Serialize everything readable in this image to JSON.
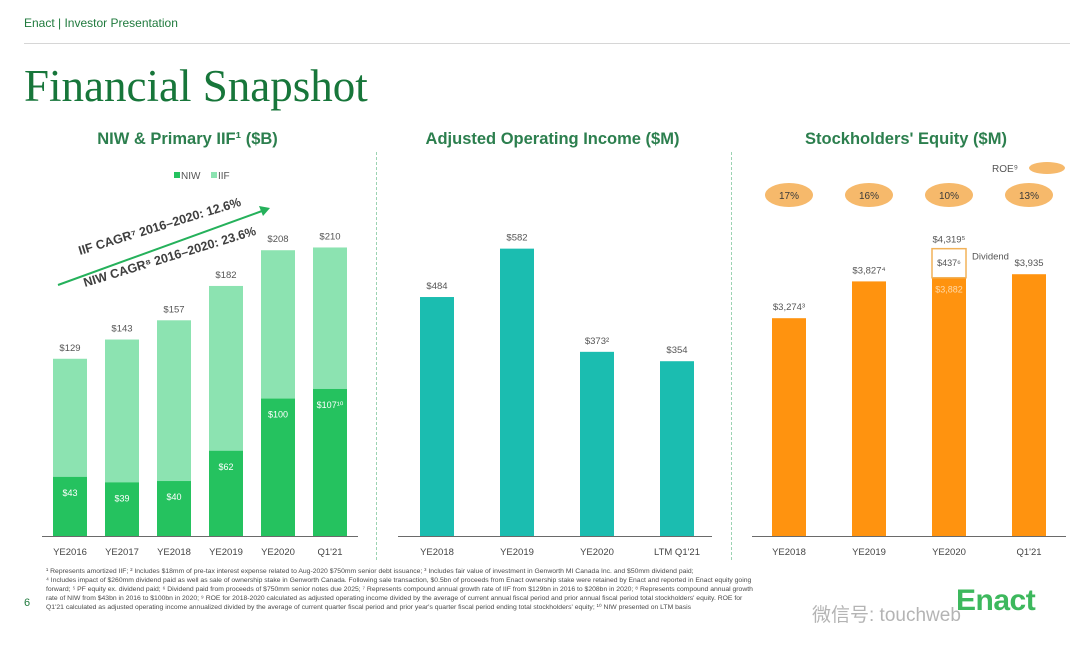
{
  "header": {
    "label": "Enact | Investor Presentation"
  },
  "page_title": "Financial Snapshot",
  "page_number": "6",
  "logo_text": "Enact",
  "watermark": "微信号: touchweb",
  "colors": {
    "niw": "#25c25f",
    "iif": "#8ce3b1",
    "teal": "#1bbdb0",
    "orange": "#ff930f",
    "roe_badge": "#f6b96b",
    "green_text": "#17763a",
    "arrow": "#25b15b"
  },
  "footnotes": [
    "¹ Represents amortized IIF; ² Includes $18mm of pre-tax interest expense related to Aug-2020 $750mm senior debt issuance; ³ Includes fair value of investment in Genworth MI Canada Inc. and $50mm dividend paid;",
    "⁴ Includes impact of $260mm dividend paid as well as sale of ownership stake in Genworth Canada. Following sale transaction, $0.5bn of proceeds from Enact ownership stake were retained by Enact and reported in Enact equity going",
    "forward; ⁵ PF equity ex. dividend paid; ⁶ Dividend paid from proceeds of $750mm senior notes due 2025; ⁷ Represents compound annual growth rate of IIF from $129bn in 2016 to $208bn in 2020; ⁸ Represents compound annual growth",
    "rate of NIW from $43bn in 2016 to $100bn in 2020; ⁹ ROE for 2018-2020 calculated as adjusted operating income divided by the average of current annual fiscal period and prior annual fiscal period total stockholders' equity. ROE for",
    "Q1'21 calculated as adjusted operating income annualized divided by the average of current quarter fiscal period and prior year's quarter fiscal period ending total stockholders' equity; ¹⁰ NIW presented on LTM basis"
  ],
  "chart_data": [
    {
      "type": "bar",
      "title": "NIW & Primary IIF¹ ($B)",
      "categories": [
        "YE2016",
        "YE2017",
        "YE2018",
        "YE2019",
        "YE2020",
        "Q1'21"
      ],
      "series": [
        {
          "name": "NIW",
          "values": [
            43,
            39,
            40,
            62,
            100,
            107
          ],
          "labels": [
            "$43",
            "$39",
            "$40",
            "$62",
            "$100",
            "$107¹⁰"
          ]
        },
        {
          "name": "IIF",
          "values": [
            129,
            143,
            157,
            182,
            208,
            210
          ],
          "labels": [
            "$129",
            "$143",
            "$157",
            "$182",
            "$208",
            "$210"
          ]
        }
      ],
      "legend": {
        "position": "top",
        "entries": [
          "NIW",
          "IIF"
        ]
      },
      "annotations": [
        "IIF CAGR⁷ 2016–2020: 12.6%",
        "NIW CAGR⁸ 2016–2020: 23.6%"
      ],
      "ylim": [
        0,
        230
      ],
      "grid": false
    },
    {
      "type": "bar",
      "title": "Adjusted Operating Income ($M)",
      "categories": [
        "YE2018",
        "YE2019",
        "YE2020",
        "LTM Q1'21"
      ],
      "values": [
        484,
        582,
        373,
        354
      ],
      "labels": [
        "$484",
        "$582",
        "$373²",
        "$354"
      ],
      "ylim": [
        0,
        640
      ],
      "grid": false
    },
    {
      "type": "bar",
      "title": "Stockholders' Equity ($M)",
      "categories": [
        "YE2018",
        "YE2019",
        "YE2020",
        "Q1'21"
      ],
      "values": [
        3274,
        3827,
        3882,
        3935
      ],
      "labels": [
        "$3,274³",
        "$3,827⁴",
        "$3,882",
        "$3,935"
      ],
      "dividend": {
        "category": "YE2020",
        "value": 437,
        "label": "$437⁶",
        "name": "Dividend",
        "total_label": "$4,319⁵"
      },
      "roe": {
        "legend": "ROE⁹",
        "values": [
          "17%",
          "16%",
          "10%",
          "13%"
        ]
      },
      "ylim": [
        0,
        4750
      ],
      "grid": false
    }
  ]
}
